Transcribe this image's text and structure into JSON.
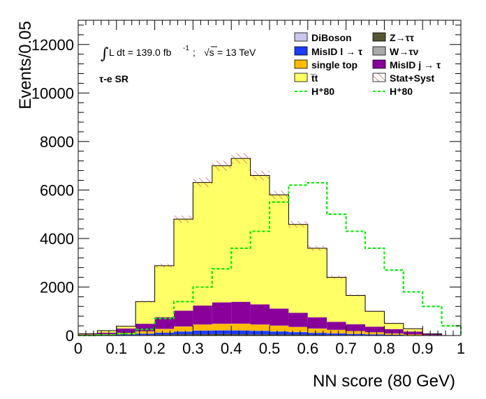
{
  "chart_data": {
    "type": "bar",
    "stacked": true,
    "xlabel": "NN score (80 GeV)",
    "ylabel": "Events/0.05",
    "xlim": [
      0,
      1
    ],
    "ylim": [
      0,
      13000
    ],
    "x_ticks": [
      "0",
      "0.1",
      "0.2",
      "0.3",
      "0.4",
      "0.5",
      "0.6",
      "0.7",
      "0.8",
      "0.9",
      "1"
    ],
    "y_ticks": [
      "0",
      "2000",
      "4000",
      "6000",
      "8000",
      "10000",
      "12000"
    ],
    "bin_edges": [
      0,
      0.05,
      0.1,
      0.15,
      0.2,
      0.25,
      0.3,
      0.35,
      0.4,
      0.45,
      0.5,
      0.55,
      0.6,
      0.65,
      0.7,
      0.75,
      0.8,
      0.85,
      0.9,
      0.95,
      1.0
    ],
    "series": [
      {
        "name": "Z→ττ",
        "color": "#555533",
        "values": [
          5,
          10,
          15,
          25,
          35,
          50,
          60,
          60,
          55,
          50,
          45,
          40,
          30,
          25,
          20,
          15,
          10,
          5,
          5,
          0
        ]
      },
      {
        "name": "MisID l → τ",
        "color": "#1a3cff",
        "values": [
          10,
          20,
          30,
          50,
          80,
          110,
          140,
          150,
          150,
          140,
          120,
          100,
          80,
          60,
          45,
          30,
          20,
          10,
          5,
          0
        ]
      },
      {
        "name": "W→τν",
        "color": "#aaaaaa",
        "values": [
          0,
          0,
          0,
          5,
          5,
          10,
          10,
          10,
          10,
          10,
          10,
          10,
          5,
          5,
          5,
          5,
          0,
          0,
          0,
          0
        ]
      },
      {
        "name": "single top",
        "color": "#ffbb00",
        "values": [
          10,
          30,
          60,
          90,
          150,
          200,
          240,
          260,
          270,
          250,
          230,
          200,
          170,
          140,
          110,
          80,
          50,
          30,
          10,
          0
        ]
      },
      {
        "name": "DiBoson",
        "color": "#c8c8ee",
        "values": [
          0,
          0,
          5,
          5,
          5,
          5,
          5,
          5,
          5,
          5,
          5,
          5,
          5,
          5,
          5,
          5,
          5,
          0,
          0,
          0
        ]
      },
      {
        "name": "MisID j → τ",
        "color": "#880099",
        "values": [
          20,
          60,
          180,
          310,
          480,
          650,
          780,
          880,
          900,
          830,
          700,
          580,
          460,
          330,
          280,
          230,
          180,
          120,
          50,
          0
        ]
      },
      {
        "name": "tt̄",
        "color": "#ffff66",
        "values": [
          30,
          80,
          90,
          915,
          2125,
          3775,
          5075,
          5635,
          5910,
          5315,
          4690,
          3645,
          2850,
          1835,
          1190,
          635,
          235,
          115,
          0,
          0
        ]
      }
    ],
    "uncertainty_band": {
      "name": "Stat+Syst",
      "frac": 0.03
    },
    "signal": [
      {
        "name": "H⁺80",
        "color": "#00ee00",
        "values": [
          0,
          20,
          80,
          250,
          700,
          1400,
          2000,
          2750,
          3600,
          4300,
          5500,
          6200,
          6300,
          5000,
          4300,
          3600,
          2700,
          1800,
          1200,
          400
        ]
      },
      {
        "name": "H⁺80",
        "color": "#00ee00",
        "values": [
          0,
          20,
          80,
          250,
          700,
          1400,
          2000,
          2750,
          3600,
          4300,
          5500,
          6200,
          6300,
          5000,
          4300,
          3600,
          2700,
          1800,
          1200,
          400
        ]
      }
    ],
    "legend_position": "top-right"
  },
  "annotations": {
    "lumi_integral": "∫",
    "lumi_text": "L dt = 139.0 fb",
    "lumi_sup": "-1",
    "lumi_sep": ";",
    "sqrt_s": "√s",
    "sqrt_s_value": " = 13 TeV",
    "region": "τ-e SR"
  },
  "legend": [
    {
      "label": "DiBoson",
      "type": "fill",
      "color": "#c8c8ee"
    },
    {
      "label": "Z→ττ",
      "type": "fill",
      "color": "#555533"
    },
    {
      "label": "MisID l → τ",
      "type": "fill",
      "color": "#1a3cff"
    },
    {
      "label": "W→τν",
      "type": "fill",
      "color": "#aaaaaa"
    },
    {
      "label": "single top",
      "type": "fill",
      "color": "#ffbb00"
    },
    {
      "label": "MisID j → τ",
      "type": "fill",
      "color": "#880099"
    },
    {
      "label": "t̅t",
      "type": "fill",
      "color": "#ffff66"
    },
    {
      "label": "Stat+Syst",
      "type": "hatch",
      "color": "#cc4444"
    },
    {
      "label": "H⁺80",
      "type": "dash",
      "color": "#00ee00"
    },
    {
      "label": "H⁺80",
      "type": "dash",
      "color": "#00ee00"
    }
  ]
}
